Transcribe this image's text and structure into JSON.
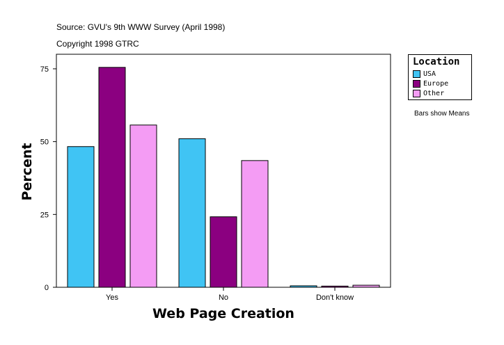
{
  "header": {
    "source": "Source: GVU's 9th WWW Survey (April 1998)",
    "copyright": "Copyright 1998 GTRC"
  },
  "legend": {
    "title": "Location"
  },
  "note": "Bars show Means",
  "chart_data": {
    "type": "bar",
    "categories": [
      "Yes",
      "No",
      "Don't know"
    ],
    "series": [
      {
        "name": "USA",
        "color": "#40C4F4",
        "values": [
          48.3,
          51.0,
          0.5
        ]
      },
      {
        "name": "Europe",
        "color": "#8B0080",
        "values": [
          75.5,
          24.2,
          0.4
        ]
      },
      {
        "name": "Other",
        "color": "#F49CF4",
        "values": [
          55.7,
          43.5,
          0.7
        ]
      }
    ],
    "xlabel": "Web Page Creation",
    "ylabel": "Percent",
    "ylim": [
      0,
      80
    ],
    "yticks": [
      0,
      25,
      50,
      75
    ],
    "grid": false,
    "legend_position": "top-right"
  }
}
